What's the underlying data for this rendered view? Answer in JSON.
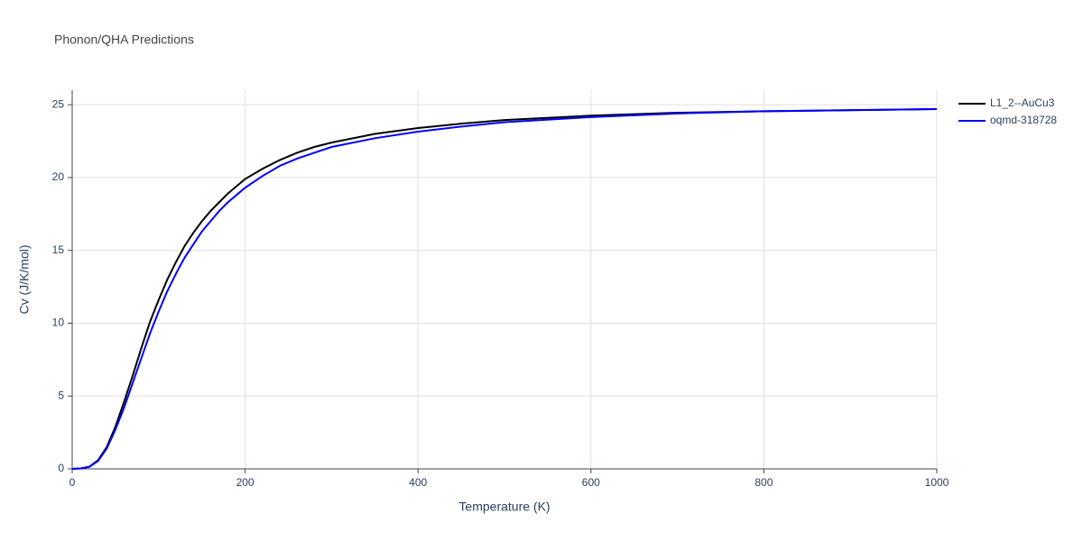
{
  "chart_data": {
    "type": "line",
    "title": "Phonon/QHA Predictions",
    "x_label": "Temperature (K)",
    "y_label": "Cv (J/K/mol)",
    "x": [
      0,
      10,
      20,
      30,
      40,
      50,
      60,
      70,
      80,
      90,
      100,
      110,
      120,
      130,
      140,
      150,
      160,
      170,
      180,
      190,
      200,
      220,
      240,
      260,
      280,
      300,
      350,
      400,
      450,
      500,
      600,
      700,
      800,
      900,
      1000
    ],
    "series": [
      {
        "name": "L1_2--AuCu3",
        "color": "#000000",
        "values": [
          0,
          0.03,
          0.15,
          0.6,
          1.5,
          2.9,
          4.6,
          6.4,
          8.3,
          10.1,
          11.6,
          13.0,
          14.2,
          15.3,
          16.2,
          17.0,
          17.7,
          18.3,
          18.9,
          19.4,
          19.9,
          20.6,
          21.2,
          21.7,
          22.1,
          22.4,
          23.0,
          23.4,
          23.7,
          23.95,
          24.25,
          24.45,
          24.55,
          24.62,
          24.7
        ]
      },
      {
        "name": "oqmd-318728",
        "color": "#0000ff",
        "values": [
          0,
          0.03,
          0.14,
          0.55,
          1.4,
          2.7,
          4.2,
          5.9,
          7.6,
          9.3,
          10.8,
          12.2,
          13.4,
          14.5,
          15.4,
          16.3,
          17.0,
          17.7,
          18.3,
          18.8,
          19.3,
          20.1,
          20.8,
          21.3,
          21.7,
          22.1,
          22.7,
          23.15,
          23.5,
          23.8,
          24.15,
          24.4,
          24.55,
          24.63,
          24.7
        ]
      }
    ],
    "xlim": [
      0,
      1000
    ],
    "xticks": [
      0,
      200,
      400,
      600,
      800,
      1000
    ],
    "ylim": [
      0,
      26
    ],
    "yticks": [
      0,
      5,
      10,
      15,
      20,
      25
    ],
    "grid": true,
    "legend": "top-right"
  }
}
